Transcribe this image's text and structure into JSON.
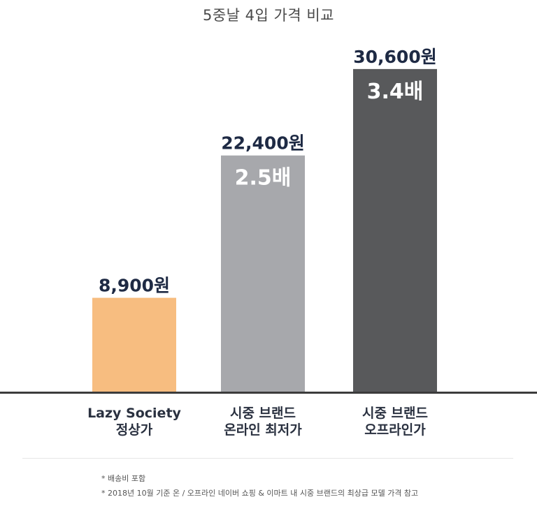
{
  "chart_data": {
    "type": "bar",
    "title": "5중날 4입 가격 비교",
    "categories": [
      [
        "Lazy Society",
        "정상가"
      ],
      [
        "시중 브랜드",
        "온라인 최저가"
      ],
      [
        "시중 브랜드",
        "오프라인가"
      ]
    ],
    "values": [
      8900,
      22400,
      30600
    ],
    "value_labels": [
      "8,900원",
      "22,400원",
      "30,600원"
    ],
    "ratio_labels": [
      "",
      "2.5배",
      "3.4배"
    ],
    "colors": [
      "#f7bd80",
      "#a7a8ac",
      "#58595b"
    ],
    "ylim": [
      0,
      34300
    ],
    "grid": false
  },
  "footnotes": [
    "* 배송비 포함",
    "* 2018년 10월 기준 온 / 오프라인 네이버 쇼핑 & 이마트 내 시중 브랜드의 최상급 모델 가격 참고"
  ]
}
